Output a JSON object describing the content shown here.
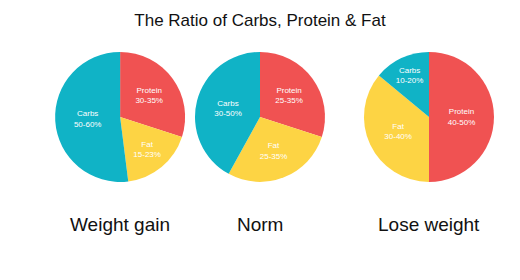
{
  "title": "The Ratio of Carbs, Protein & Fat",
  "chart_data": [
    {
      "type": "pie",
      "title": "Weight gain",
      "categories": [
        "Protein",
        "Fat",
        "Carbs"
      ],
      "values": [
        30,
        18,
        52
      ],
      "value_labels": [
        "30-35%",
        "15-23%",
        "50-60%"
      ],
      "colors": [
        "#f05252",
        "#fdd444",
        "#10b3c6"
      ],
      "data_labels": true
    },
    {
      "type": "pie",
      "title": "Norm",
      "categories": [
        "Protein",
        "Fat",
        "Carbs"
      ],
      "values": [
        30,
        28,
        42
      ],
      "value_labels": [
        "25-35%",
        "25-35%",
        "30-50%"
      ],
      "colors": [
        "#f05252",
        "#fdd444",
        "#10b3c6"
      ],
      "data_labels": true
    },
    {
      "type": "pie",
      "title": "Lose weight",
      "categories": [
        "Protein",
        "Fat",
        "Carbs"
      ],
      "values": [
        50,
        36,
        14
      ],
      "value_labels": [
        "40-50%",
        "30-40%",
        "10-20%"
      ],
      "colors": [
        "#f05252",
        "#fdd444",
        "#10b3c6"
      ],
      "data_labels": true
    }
  ]
}
